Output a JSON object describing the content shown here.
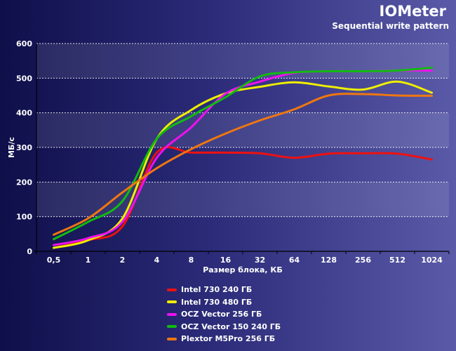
{
  "chart_data": {
    "type": "line",
    "title": "IOMeter",
    "subtitle": "Sequential write pattern",
    "xlabel": "Размер блока, КБ",
    "ylabel": "МБ/с",
    "categories": [
      "0,5",
      "1",
      "2",
      "4",
      "8",
      "16",
      "32",
      "64",
      "128",
      "256",
      "512",
      "1024"
    ],
    "ylim": [
      0,
      600
    ],
    "yticks": [
      "0",
      "100",
      "200",
      "300",
      "400",
      "500",
      "600"
    ],
    "grid": true,
    "legend_position": "bottom",
    "series": [
      {
        "name": "Intel 730 240 ГБ",
        "color": "#ee1111",
        "values": [
          10,
          32,
          72,
          285,
          285,
          285,
          283,
          270,
          282,
          283,
          282,
          265
        ]
      },
      {
        "name": "Intel 730 480 ГБ",
        "color": "#eeee00",
        "values": [
          10,
          32,
          95,
          325,
          408,
          456,
          475,
          488,
          476,
          467,
          490,
          458
        ]
      },
      {
        "name": "OCZ Vector 256 ГБ",
        "color": "#ee11ee",
        "values": [
          18,
          38,
          85,
          270,
          358,
          455,
          490,
          515,
          520,
          520,
          522,
          522
        ]
      },
      {
        "name": "OCZ Vector 150 240 ГБ",
        "color": "#11bb11",
        "values": [
          35,
          85,
          145,
          325,
          390,
          445,
          505,
          517,
          520,
          520,
          522,
          530
        ]
      },
      {
        "name": "Plextor M5Pro 256 ГБ",
        "color": "#ee7711",
        "values": [
          48,
          95,
          170,
          240,
          295,
          340,
          378,
          410,
          450,
          454,
          450,
          449
        ]
      }
    ]
  }
}
